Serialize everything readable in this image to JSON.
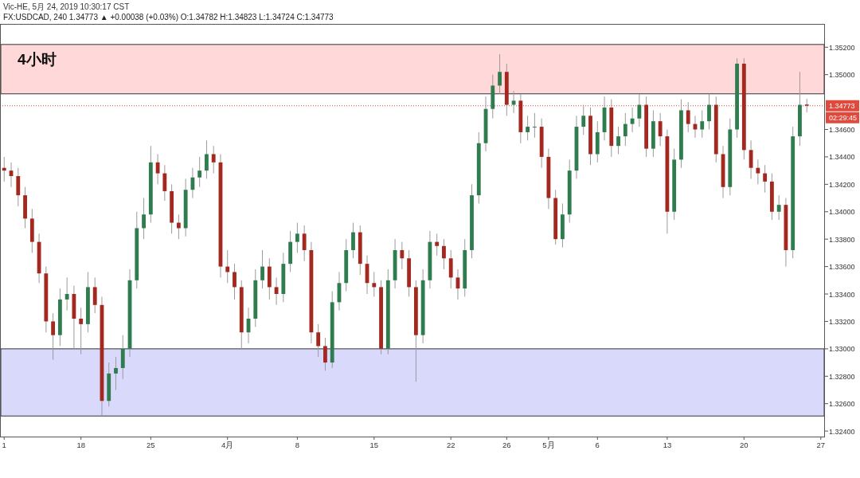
{
  "chart_data": {
    "type": "candlestick",
    "subtitle": "Vic-HE, 5月 24, 2019 10:30:17 CST",
    "title": "FX:USDCAD, 240 1.34773 ▲ +0.00038 (+0.03%) O:1.34782 H:1.34823 L:1.34724 C:1.34773",
    "annotations": [
      "4小时",
      "02:29:45"
    ],
    "categories": [
      "1",
      null,
      null,
      null,
      null,
      null,
      null,
      null,
      null,
      null,
      null,
      "18",
      null,
      null,
      null,
      null,
      null,
      null,
      null,
      null,
      null,
      "25",
      null,
      null,
      null,
      null,
      null,
      null,
      null,
      null,
      null,
      null,
      "4月",
      null,
      null,
      null,
      null,
      null,
      null,
      null,
      null,
      null,
      "8",
      null,
      null,
      null,
      null,
      null,
      null,
      null,
      null,
      null,
      null,
      "15",
      null,
      null,
      null,
      null,
      null,
      null,
      null,
      null,
      null,
      null,
      "22",
      null,
      null,
      null,
      null,
      null,
      null,
      null,
      "26",
      null,
      null,
      null,
      null,
      null,
      "5月",
      null,
      null,
      null,
      null,
      null,
      null,
      "6",
      null,
      null,
      null,
      null,
      null,
      null,
      null,
      null,
      null,
      "13",
      null,
      null,
      null,
      null,
      null,
      null,
      null,
      null,
      null,
      null,
      "20",
      null,
      null,
      null,
      null,
      null,
      null,
      null,
      null,
      null,
      null,
      "27"
    ],
    "ohlc": [
      [
        1.3432,
        1.344,
        1.3422,
        1.343
      ],
      [
        1.343,
        1.3436,
        1.3418,
        1.3426
      ],
      [
        1.3426,
        1.3432,
        1.3404,
        1.3412
      ],
      [
        1.3412,
        1.3418,
        1.3388,
        1.3395
      ],
      [
        1.3395,
        1.3402,
        1.337,
        1.3378
      ],
      [
        1.3378,
        1.3384,
        1.3348,
        1.3355
      ],
      [
        1.3355,
        1.336,
        1.3312,
        1.332
      ],
      [
        1.332,
        1.3326,
        1.3292,
        1.331
      ],
      [
        1.331,
        1.3344,
        1.3302,
        1.3336
      ],
      [
        1.3336,
        1.3352,
        1.3328,
        1.334
      ],
      [
        1.334,
        1.3346,
        1.33,
        1.3322
      ],
      [
        1.3322,
        1.333,
        1.3296,
        1.3318
      ],
      [
        1.3318,
        1.3356,
        1.3312,
        1.3345
      ],
      [
        1.3345,
        1.3352,
        1.3326,
        1.3332
      ],
      [
        1.3332,
        1.3338,
        1.3251,
        1.3262
      ],
      [
        1.3262,
        1.329,
        1.3258,
        1.3282
      ],
      [
        1.3282,
        1.3294,
        1.327,
        1.3286
      ],
      [
        1.3286,
        1.331,
        1.3278,
        1.33
      ],
      [
        1.33,
        1.3358,
        1.3294,
        1.335
      ],
      [
        1.335,
        1.34,
        1.3344,
        1.3388
      ],
      [
        1.3388,
        1.341,
        1.338,
        1.3398
      ],
      [
        1.3398,
        1.3448,
        1.3392,
        1.3436
      ],
      [
        1.3436,
        1.3442,
        1.342,
        1.3428
      ],
      [
        1.3428,
        1.3434,
        1.3408,
        1.3415
      ],
      [
        1.3415,
        1.342,
        1.3384,
        1.3392
      ],
      [
        1.3392,
        1.3398,
        1.338,
        1.3388
      ],
      [
        1.3388,
        1.3424,
        1.3382,
        1.3416
      ],
      [
        1.3416,
        1.3432,
        1.341,
        1.3425
      ],
      [
        1.3425,
        1.344,
        1.3418,
        1.343
      ],
      [
        1.343,
        1.3452,
        1.3424,
        1.3442
      ],
      [
        1.3442,
        1.3448,
        1.3428,
        1.3436
      ],
      [
        1.3436,
        1.3442,
        1.3352,
        1.336
      ],
      [
        1.336,
        1.3372,
        1.3348,
        1.3356
      ],
      [
        1.3356,
        1.3362,
        1.3336,
        1.3345
      ],
      [
        1.3345,
        1.335,
        1.33,
        1.3312
      ],
      [
        1.3312,
        1.333,
        1.3304,
        1.3322
      ],
      [
        1.3322,
        1.3358,
        1.3316,
        1.335
      ],
      [
        1.335,
        1.3372,
        1.3344,
        1.336
      ],
      [
        1.336,
        1.3366,
        1.3336,
        1.3345
      ],
      [
        1.3345,
        1.3352,
        1.3332,
        1.334
      ],
      [
        1.334,
        1.337,
        1.3334,
        1.3362
      ],
      [
        1.3362,
        1.3386,
        1.3356,
        1.3378
      ],
      [
        1.3378,
        1.3392,
        1.337,
        1.3384
      ],
      [
        1.3384,
        1.339,
        1.3364,
        1.3372
      ],
      [
        1.3372,
        1.3378,
        1.3304,
        1.3312
      ],
      [
        1.3312,
        1.3318,
        1.3294,
        1.3302
      ],
      [
        1.3302,
        1.3308,
        1.3284,
        1.329
      ],
      [
        1.329,
        1.3342,
        1.3286,
        1.3334
      ],
      [
        1.3334,
        1.3356,
        1.3328,
        1.3348
      ],
      [
        1.3348,
        1.338,
        1.3342,
        1.3372
      ],
      [
        1.3372,
        1.3392,
        1.3366,
        1.3385
      ],
      [
        1.3385,
        1.339,
        1.3354,
        1.3362
      ],
      [
        1.3362,
        1.3368,
        1.334,
        1.3348
      ],
      [
        1.3348,
        1.3356,
        1.3338,
        1.3345
      ],
      [
        1.3345,
        1.335,
        1.3296,
        1.33
      ],
      [
        1.33,
        1.3358,
        1.3296,
        1.335
      ],
      [
        1.335,
        1.338,
        1.3344,
        1.3372
      ],
      [
        1.3372,
        1.3378,
        1.3358,
        1.3366
      ],
      [
        1.3366,
        1.3372,
        1.3338,
        1.3345
      ],
      [
        1.3345,
        1.335,
        1.3276,
        1.331
      ],
      [
        1.331,
        1.3358,
        1.3304,
        1.335
      ],
      [
        1.335,
        1.3386,
        1.3344,
        1.3378
      ],
      [
        1.3378,
        1.3384,
        1.3368,
        1.3375
      ],
      [
        1.3375,
        1.338,
        1.3358,
        1.3366
      ],
      [
        1.3366,
        1.3372,
        1.3344,
        1.3352
      ],
      [
        1.3352,
        1.3358,
        1.3336,
        1.3344
      ],
      [
        1.3344,
        1.338,
        1.3338,
        1.3372
      ],
      [
        1.3372,
        1.342,
        1.3366,
        1.3412
      ],
      [
        1.3412,
        1.3458,
        1.3406,
        1.345
      ],
      [
        1.345,
        1.3484,
        1.3444,
        1.3475
      ],
      [
        1.3475,
        1.35,
        1.3468,
        1.3492
      ],
      [
        1.3492,
        1.3515,
        1.3486,
        1.3502
      ],
      [
        1.3502,
        1.3508,
        1.347,
        1.3478
      ],
      [
        1.3478,
        1.3488,
        1.3472,
        1.3481
      ],
      [
        1.3481,
        1.3486,
        1.345,
        1.3458
      ],
      [
        1.3458,
        1.347,
        1.3452,
        1.3462
      ],
      [
        1.3462,
        1.3472,
        1.3454,
        1.3462
      ],
      [
        1.3462,
        1.3468,
        1.3432,
        1.344
      ],
      [
        1.344,
        1.3446,
        1.3402,
        1.341
      ],
      [
        1.341,
        1.3416,
        1.3376,
        1.338
      ],
      [
        1.338,
        1.3406,
        1.3374,
        1.3398
      ],
      [
        1.3398,
        1.3438,
        1.3392,
        1.343
      ],
      [
        1.343,
        1.347,
        1.3424,
        1.3462
      ],
      [
        1.3462,
        1.3478,
        1.3456,
        1.347
      ],
      [
        1.347,
        1.3476,
        1.3434,
        1.3442
      ],
      [
        1.3442,
        1.3466,
        1.3436,
        1.3458
      ],
      [
        1.3458,
        1.3484,
        1.3452,
        1.3476
      ],
      [
        1.3476,
        1.3482,
        1.344,
        1.3448
      ],
      [
        1.3448,
        1.3462,
        1.3442,
        1.3455
      ],
      [
        1.3455,
        1.3472,
        1.3448,
        1.3464
      ],
      [
        1.3464,
        1.3476,
        1.3458,
        1.3468
      ],
      [
        1.3468,
        1.3486,
        1.3462,
        1.3478
      ],
      [
        1.3478,
        1.3484,
        1.344,
        1.3446
      ],
      [
        1.3446,
        1.3474,
        1.344,
        1.3466
      ],
      [
        1.3466,
        1.3472,
        1.3448,
        1.3455
      ],
      [
        1.3455,
        1.346,
        1.3384,
        1.34
      ],
      [
        1.34,
        1.3446,
        1.3394,
        1.3438
      ],
      [
        1.3438,
        1.3482,
        1.3432,
        1.3474
      ],
      [
        1.3474,
        1.348,
        1.3458,
        1.3464
      ],
      [
        1.3464,
        1.347,
        1.3454,
        1.346
      ],
      [
        1.346,
        1.3474,
        1.3454,
        1.3466
      ],
      [
        1.3466,
        1.3486,
        1.346,
        1.3478
      ],
      [
        1.3478,
        1.3484,
        1.3436,
        1.3442
      ],
      [
        1.3442,
        1.3448,
        1.341,
        1.3418
      ],
      [
        1.3418,
        1.3468,
        1.3412,
        1.346
      ],
      [
        1.346,
        1.3512,
        1.3454,
        1.3508
      ],
      [
        1.3508,
        1.3512,
        1.3438,
        1.3445
      ],
      [
        1.3445,
        1.3452,
        1.3424,
        1.3432
      ],
      [
        1.3432,
        1.3438,
        1.342,
        1.3428
      ],
      [
        1.3428,
        1.3434,
        1.3414,
        1.3422
      ],
      [
        1.3422,
        1.3428,
        1.3394,
        1.34
      ],
      [
        1.34,
        1.3412,
        1.3394,
        1.3405
      ],
      [
        1.3405,
        1.341,
        1.336,
        1.3372
      ],
      [
        1.3372,
        1.3462,
        1.3366,
        1.3455
      ],
      [
        1.3455,
        1.3502,
        1.3448,
        1.3478
      ],
      [
        1.34782,
        1.34823,
        1.34724,
        1.34773
      ],
      null,
      null
    ],
    "ylim": [
      1.3236,
      1.3537
    ],
    "yticks": [
      {
        "value": 1.324,
        "label": "1.32400"
      },
      {
        "value": 1.326,
        "label": "1.32600"
      },
      {
        "value": 1.328,
        "label": "1.32800"
      },
      {
        "value": 1.33,
        "label": "1.33000"
      },
      {
        "value": 1.332,
        "label": "1.33200"
      },
      {
        "value": 1.334,
        "label": "1.33400"
      },
      {
        "value": 1.336,
        "label": "1.33600"
      },
      {
        "value": 1.338,
        "label": "1.33800"
      },
      {
        "value": 1.34,
        "label": "1.34000"
      },
      {
        "value": 1.342,
        "label": "1.34200"
      },
      {
        "value": 1.344,
        "label": "1.34400"
      },
      {
        "value": 1.346,
        "label": "1.34600"
      },
      {
        "value": 1.35,
        "label": "1.35000"
      },
      {
        "value": 1.352,
        "label": "1.35200"
      }
    ],
    "ref_lines": [
      {
        "axis": "y",
        "value": 1.34773,
        "label": "1.34773",
        "color": "#e0493b",
        "line_style": "dotted"
      }
    ],
    "bands": [
      {
        "axis": "y",
        "from": 1.3486,
        "to": 1.3522,
        "color": "#ffd9d9"
      },
      {
        "axis": "y",
        "from": 1.3251,
        "to": 1.33,
        "color": "#d9d9fc"
      }
    ]
  }
}
